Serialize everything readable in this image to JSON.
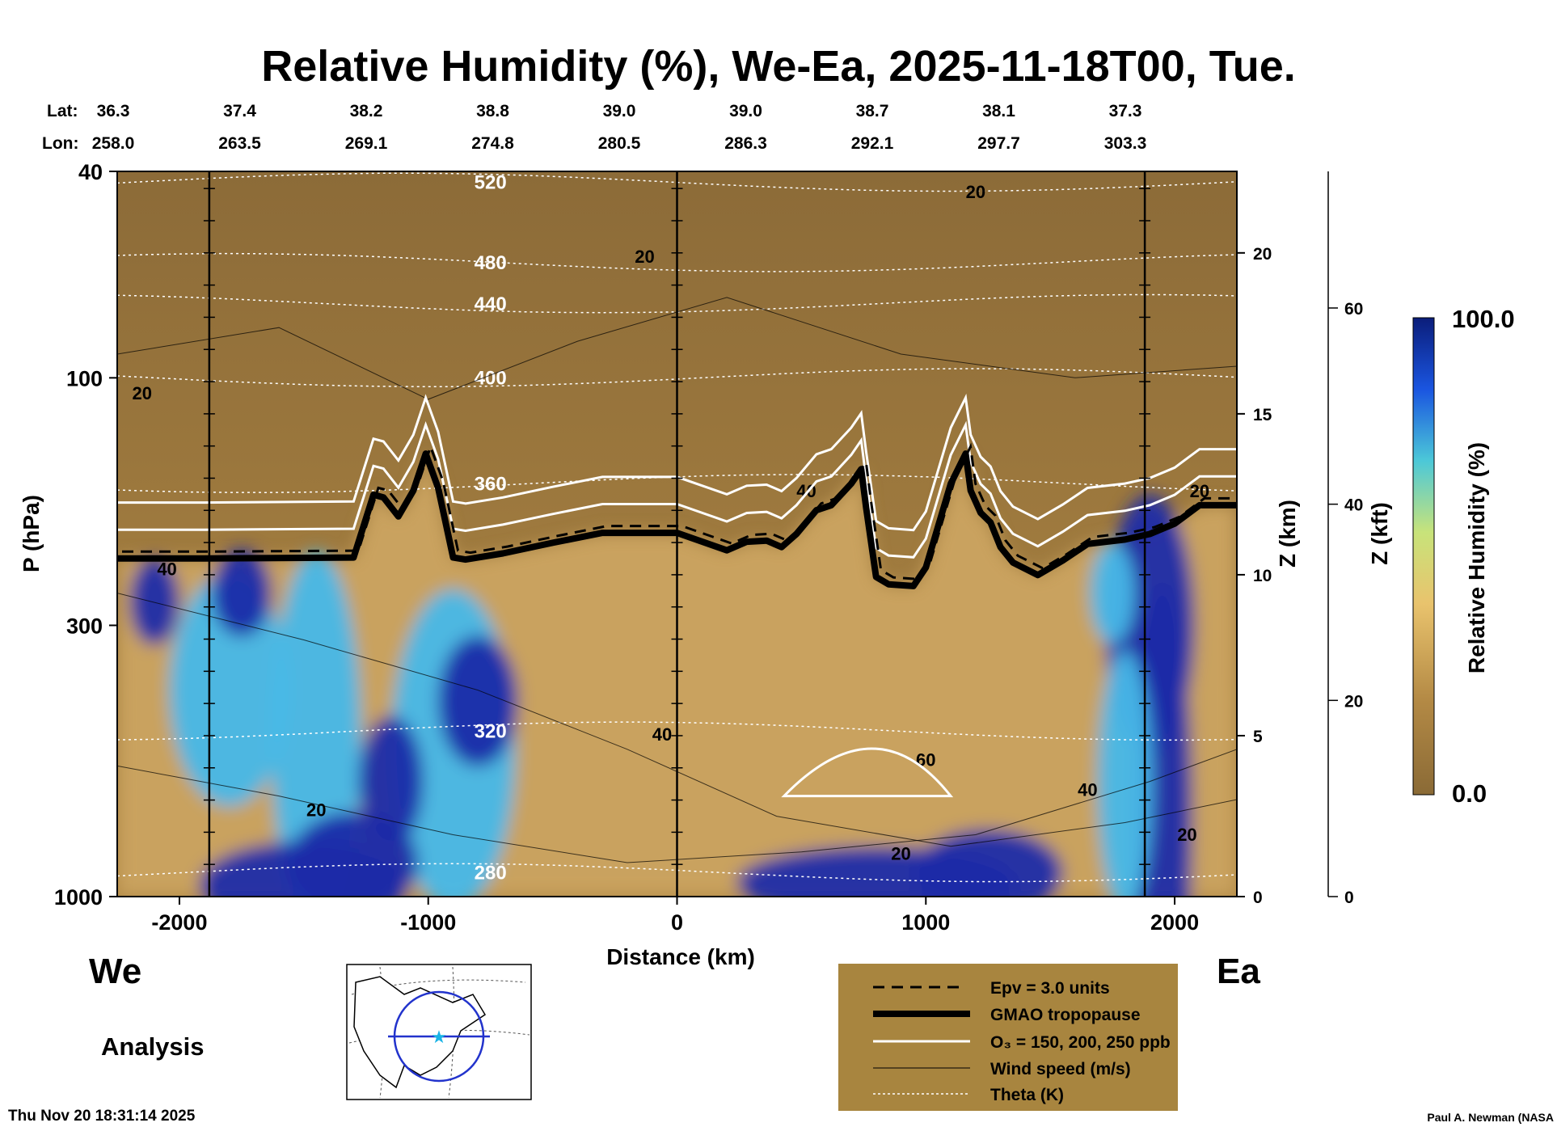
{
  "chart_data": {
    "type": "heatmap",
    "title": "Relative Humidity (%), We-Ea, 2025-11-18T00, Tue.",
    "xlabel": "Distance (km)",
    "ylabel": "P (hPa)",
    "ylabel_right_1": "Z (km)",
    "ylabel_right_2": "Z (kft)",
    "colorbar_label": "Relative Humidity (%)",
    "colorbar_range": [
      0.0,
      100.0
    ],
    "colorbar_ticks": [
      "100.0",
      "0.0"
    ],
    "xlim": [
      -2250,
      2250
    ],
    "ylim": [
      1000,
      40
    ],
    "y_scale": "log",
    "x_ticks": [
      "-2000",
      "-1000",
      "0",
      "1000",
      "2000"
    ],
    "y_ticks": [
      "40",
      "100",
      "300",
      "1000"
    ],
    "z_km_ticks": [
      "0",
      "5",
      "10",
      "15",
      "20"
    ],
    "z_kft_ticks": [
      "0",
      "20",
      "40",
      "60"
    ],
    "header": {
      "lat_label": "Lat:",
      "lon_label": "Lon:",
      "lat": [
        "36.3",
        "37.4",
        "38.2",
        "38.8",
        "39.0",
        "39.0",
        "38.7",
        "38.1",
        "37.3"
      ],
      "lon": [
        "258.0",
        "263.5",
        "269.1",
        "274.8",
        "280.5",
        "286.3",
        "292.1",
        "297.7",
        "303.3"
      ]
    },
    "vertical_markers_km": [
      -1880,
      0,
      1880
    ],
    "tropopause": {
      "name": "GMAO tropopause",
      "x": [
        -2250,
        -1900,
        -1300,
        -1220,
        -1180,
        -1120,
        -1060,
        -1010,
        -960,
        -900,
        -850,
        -700,
        -500,
        -300,
        0,
        200,
        280,
        360,
        420,
        480,
        560,
        620,
        700,
        740,
        760,
        800,
        850,
        950,
        1000,
        1100,
        1160,
        1180,
        1220,
        1260,
        1300,
        1350,
        1450,
        1550,
        1650,
        1800,
        1900,
        2000,
        2100,
        2200,
        2250
      ],
      "p": [
        223,
        223,
        222,
        168,
        170,
        185,
        165,
        140,
        163,
        222,
        224,
        218,
        208,
        199,
        199,
        215,
        207,
        206,
        212,
        200,
        180,
        176,
        160,
        150,
        178,
        242,
        250,
        252,
        232,
        160,
        140,
        165,
        182,
        190,
        212,
        227,
        240,
        225,
        209,
        205,
        200,
        191,
        176,
        176,
        176
      ]
    },
    "epv": {
      "name": "Epv = 3.0 units",
      "value": 3.0
    },
    "ozone": {
      "name": "O₃ = 150, 200, 250 ppb",
      "levels": [
        150,
        200,
        250
      ]
    },
    "wind_speed": {
      "name": "Wind speed (m/s)",
      "contour_labels": [
        "20",
        "20",
        "20",
        "20",
        "20",
        "20",
        "40",
        "40",
        "40",
        "40",
        "60",
        "20"
      ]
    },
    "theta": {
      "name": "Theta (K)",
      "levels": [
        "520",
        "480",
        "440",
        "400",
        "360",
        "320",
        "280"
      ]
    },
    "regions": {
      "stratosphere_color": "#9c7a3d",
      "dry_trop_color": "#c9a25f",
      "moist_color": "#47b8e8",
      "saturated_color": "#1c2aa8"
    }
  },
  "labels": {
    "west": "We",
    "east": "Ea",
    "analysis": "Analysis",
    "timestamp": "Thu Nov 20 18:31:14 2025",
    "credit": "Paul A. Newman (NASA"
  },
  "legend": {
    "background": "#a8853f",
    "items": [
      {
        "label": "Epv = 3.0 units"
      },
      {
        "label": "GMAO tropopause"
      },
      {
        "label": "O₃ = 150, 200, 250 ppb"
      },
      {
        "label": "Wind speed (m/s)"
      },
      {
        "label": "Theta (K)"
      }
    ]
  }
}
